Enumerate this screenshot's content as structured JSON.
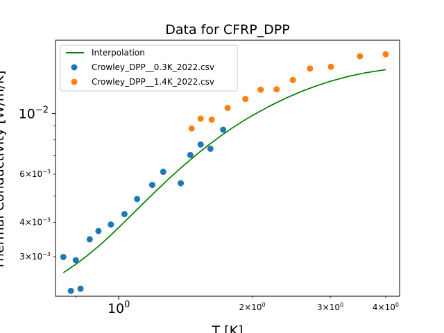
{
  "chart_data": {
    "type": "scatter",
    "title": "Data for CFRP_DPP",
    "xlabel": "T [K]",
    "ylabel": "Thermal Conductivity [W/m/K]",
    "xscale": "log",
    "yscale": "log",
    "xlim": [
      0.72,
      4.3
    ],
    "ylim": [
      0.00215,
      0.0185
    ],
    "grid": false,
    "legend_position": "top-left",
    "x_major_ticks": [
      {
        "value": 1,
        "label": "10",
        "exp": "0"
      }
    ],
    "x_minor_ticks": [
      {
        "value": 0.8,
        "label": ""
      },
      {
        "value": 2,
        "label": "2×10",
        "exp": "0"
      },
      {
        "value": 3,
        "label": "3×10",
        "exp": "0"
      },
      {
        "value": 4,
        "label": "4×10",
        "exp": "0"
      }
    ],
    "y_major_ticks": [
      {
        "value": 0.01,
        "label": "10",
        "exp": "−2"
      }
    ],
    "y_minor_ticks": [
      {
        "value": 0.003,
        "label": "3×10",
        "exp": "−3"
      },
      {
        "value": 0.004,
        "label": "4×10",
        "exp": "−3"
      },
      {
        "value": 0.005,
        "label": "",
        "exp": ""
      },
      {
        "value": 0.006,
        "label": "6×10",
        "exp": "−3"
      },
      {
        "value": 0.007,
        "label": "",
        "exp": ""
      },
      {
        "value": 0.008,
        "label": "",
        "exp": ""
      },
      {
        "value": 0.009,
        "label": "",
        "exp": ""
      }
    ],
    "series": [
      {
        "name": "Interpolation",
        "kind": "line",
        "color": "#008000",
        "x": [
          0.75,
          0.8,
          0.85,
          0.9,
          0.95,
          1.0,
          1.1,
          1.2,
          1.3,
          1.4,
          1.5,
          1.6,
          1.7,
          1.8,
          1.9,
          2.0,
          2.2,
          2.4,
          2.6,
          2.8,
          3.0,
          3.3,
          3.6,
          4.0
        ],
        "y": [
          0.00262,
          0.00281,
          0.00303,
          0.00327,
          0.00354,
          0.00383,
          0.00446,
          0.00512,
          0.00579,
          0.00645,
          0.00709,
          0.0077,
          0.00828,
          0.00883,
          0.00934,
          0.00982,
          0.01068,
          0.01143,
          0.01208,
          0.01263,
          0.0131,
          0.01366,
          0.01407,
          0.01445
        ]
      },
      {
        "name": "Crowley_DPP__0.3K_2022.csv",
        "kind": "scatter",
        "color": "#1f77b4",
        "x": [
          0.75,
          0.78,
          0.8,
          0.82,
          0.86,
          0.9,
          0.96,
          1.03,
          1.1,
          1.19,
          1.26,
          1.38,
          1.45,
          1.53,
          1.61,
          1.72
        ],
        "y": [
          0.00299,
          0.00225,
          0.00291,
          0.00229,
          0.00347,
          0.00372,
          0.00393,
          0.00429,
          0.00487,
          0.00548,
          0.00612,
          0.00556,
          0.00705,
          0.0077,
          0.00743,
          0.00872
        ]
      },
      {
        "name": "Crowley_DPP__1.4K_2022.csv",
        "kind": "scatter",
        "color": "#ff7f0e",
        "x": [
          1.46,
          1.53,
          1.62,
          1.76,
          1.93,
          2.09,
          2.27,
          2.47,
          2.7,
          3.01,
          3.5,
          4.0
        ],
        "y": [
          0.00881,
          0.00957,
          0.00949,
          0.01047,
          0.01129,
          0.01221,
          0.01225,
          0.01324,
          0.01458,
          0.0148,
          0.01617,
          0.01644
        ]
      }
    ]
  }
}
